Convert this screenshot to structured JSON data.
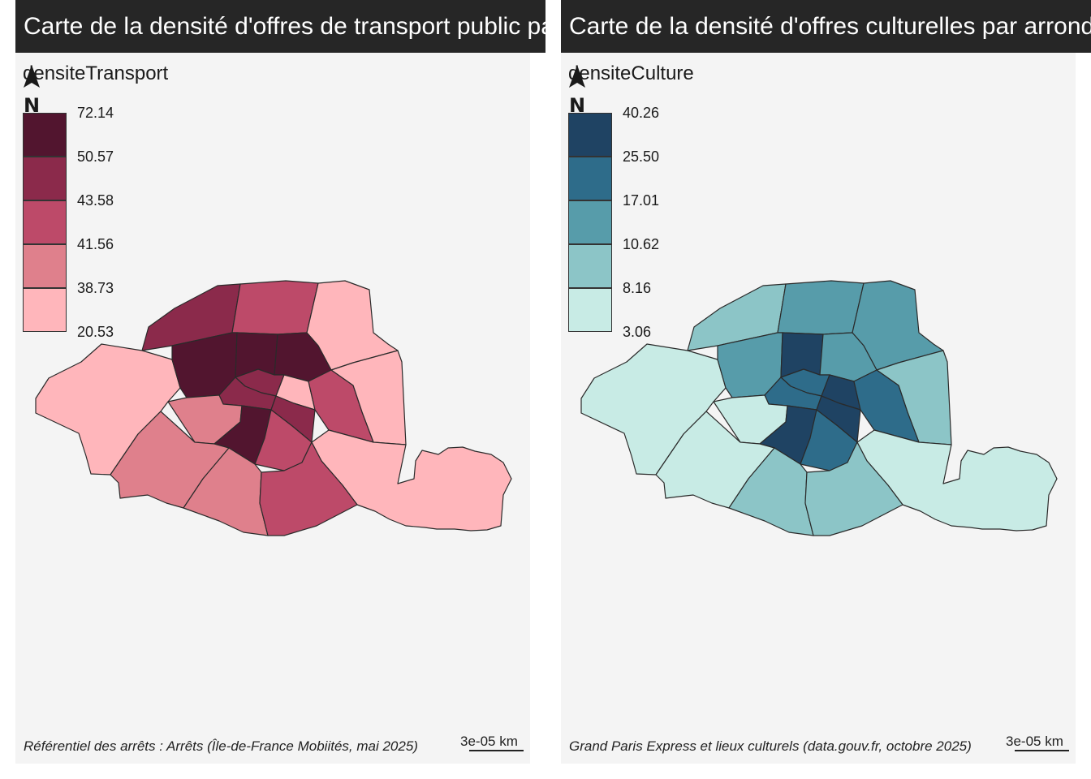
{
  "maps": [
    {
      "title": "Carte de la densité d'offres de transport public par arrondissement",
      "legend_title": "densiteTransport",
      "legend_breaks": [
        "72.14",
        "50.57",
        "43.58",
        "41.56",
        "38.73",
        "20.53"
      ],
      "legend_colors": [
        "#52152f",
        "#8b2a4b",
        "#bd4a69",
        "#df808c",
        "#ffb6bb"
      ],
      "north_label": "N",
      "source": "Référentiel des arrêts : Arrêts (Île-de-France Mobiités, mai 2025)",
      "scale_label": "3e-05 km",
      "region_class": {
        "arr16": 4,
        "arr17": 1,
        "arr18": 2,
        "arr19": 4,
        "arr20": 4,
        "arr15": 3,
        "arr14": 3,
        "arr13": 2,
        "arr12": 4,
        "arr8": 0,
        "arr9": 0,
        "arr10": 0,
        "arr2": 1,
        "arr3": 4,
        "arr1": 1,
        "arr4": 1,
        "arr11": 2,
        "arr7": 3,
        "arr6": 0,
        "arr5": 2
      }
    },
    {
      "title": "Carte de la densité d'offres culturelles par arrondissement",
      "legend_title": "densiteCulture",
      "legend_breaks": [
        "40.26",
        "25.50",
        "17.01",
        "10.62",
        "8.16",
        "3.06"
      ],
      "legend_colors": [
        "#1f4363",
        "#2e6c8a",
        "#579caa",
        "#8cc5c7",
        "#c8ebe5"
      ],
      "north_label": "N",
      "source": "Grand Paris Express et lieux culturels (data.gouv.fr, octobre 2025)",
      "scale_label": "3e-05 km",
      "region_class": {
        "arr16": 4,
        "arr17": 3,
        "arr18": 2,
        "arr19": 2,
        "arr20": 3,
        "arr15": 4,
        "arr14": 3,
        "arr13": 3,
        "arr12": 4,
        "arr8": 2,
        "arr9": 0,
        "arr10": 2,
        "arr2": 1,
        "arr3": 0,
        "arr1": 1,
        "arr4": 0,
        "arr11": 1,
        "arr7": 4,
        "arr6": 0,
        "arr5": 1
      }
    }
  ]
}
